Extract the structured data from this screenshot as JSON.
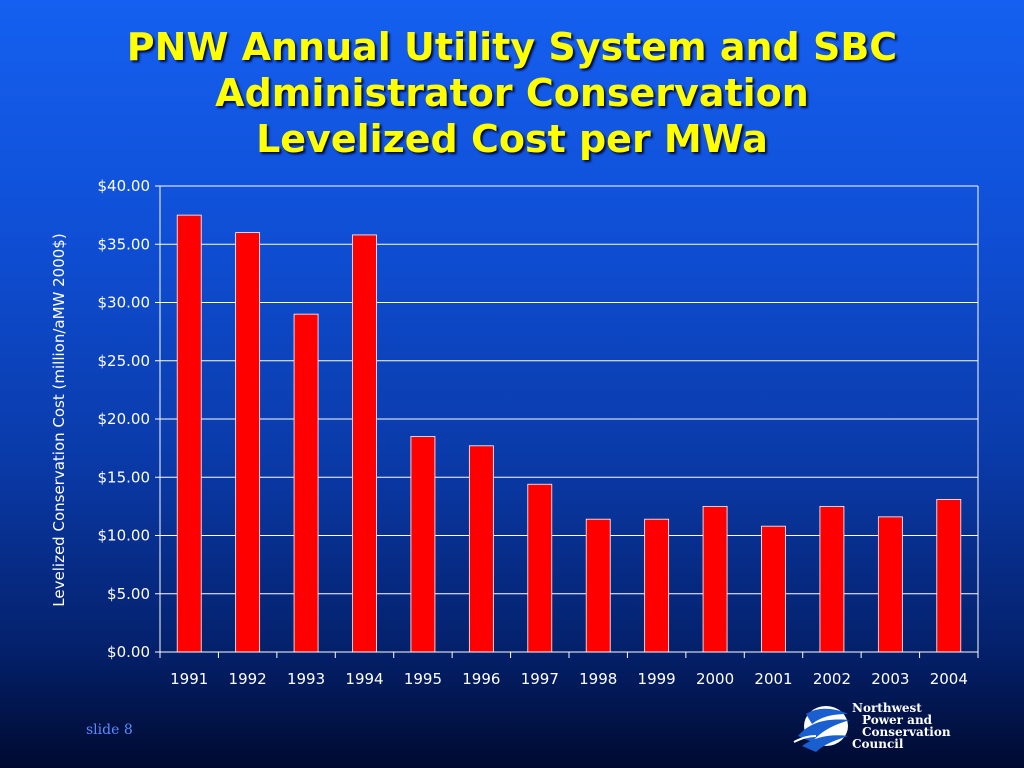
{
  "slide": {
    "title_lines": [
      "PNW Annual Utility System and SBC",
      "Administrator Conservation",
      "Levelized Cost per MWa"
    ],
    "footer": "slide 8",
    "logo": {
      "lines": [
        "Northwest",
        "Power and",
        "Conservation",
        "Council"
      ],
      "icon": "swirl-emblem-icon"
    }
  },
  "chart_data": {
    "type": "bar",
    "title": "PNW Annual Utility System and SBC Administrator Conservation Levelized Cost per MWa",
    "xlabel": "",
    "ylabel": "Levelized Conservation Cost (million/aMW 2000$)",
    "categories": [
      "1991",
      "1992",
      "1993",
      "1994",
      "1995",
      "1996",
      "1997",
      "1998",
      "1999",
      "2000",
      "2001",
      "2002",
      "2003",
      "2004"
    ],
    "values": [
      37.5,
      36.0,
      29.0,
      35.8,
      18.5,
      17.7,
      14.4,
      11.4,
      11.4,
      12.5,
      10.8,
      12.5,
      11.6,
      13.1
    ],
    "ylim": [
      0,
      40
    ],
    "yticks": [
      "$0.00",
      "$5.00",
      "$10.00",
      "$15.00",
      "$20.00",
      "$25.00",
      "$30.00",
      "$35.00",
      "$40.00"
    ],
    "grid": true,
    "legend": "none",
    "colors": {
      "bar": "#ff0000",
      "bar_edge": "#ffffff",
      "grid": "#ffffff",
      "axis": "#ffffff"
    }
  }
}
